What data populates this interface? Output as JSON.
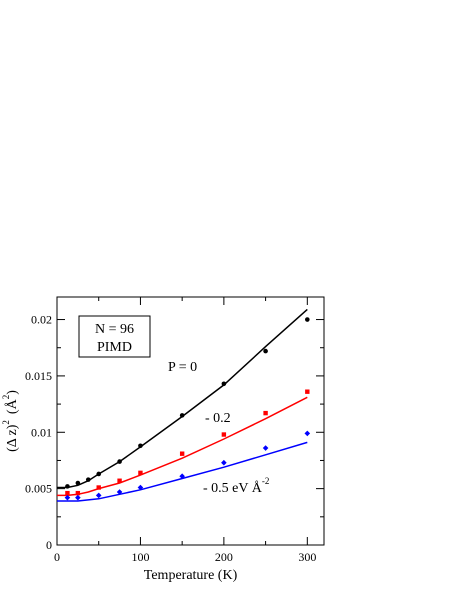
{
  "chart_data": {
    "type": "scatter",
    "xlabel": "Temperature  (K)",
    "ylabel": "(Δ z)",
    "ylabel_sup": "2",
    "ylabel_unit_open": "(",
    "ylabel_unit": "Å",
    "ylabel_unit_sup": "2",
    "ylabel_unit_close": ")",
    "xlim": [
      0,
      320
    ],
    "ylim": [
      0,
      0.022
    ],
    "xticks": [
      0,
      100,
      200,
      300
    ],
    "xtick_labels": [
      "0",
      "100",
      "200",
      "300"
    ],
    "yticks": [
      0,
      0.005,
      0.01,
      0.015,
      0.02
    ],
    "ytick_labels": [
      "0",
      "0.005",
      "0.01",
      "0.015",
      "0.02"
    ],
    "legend_box": {
      "line1": "N  =  96",
      "line2": "PIMD"
    },
    "annotations": {
      "p0": "P  =  0",
      "p1": "- 0.2",
      "p2": "- 0.5  eV Å",
      "p2_sup": "-2"
    },
    "series": [
      {
        "color": "#000000",
        "marker": "circle",
        "points": [
          [
            12.5,
            0.0052
          ],
          [
            25,
            0.0055
          ],
          [
            37.5,
            0.0058
          ],
          [
            50,
            0.0063
          ],
          [
            75,
            0.0074
          ],
          [
            100,
            0.0088
          ],
          [
            150,
            0.0115
          ],
          [
            200,
            0.0143
          ],
          [
            250,
            0.0172
          ],
          [
            300,
            0.02
          ]
        ],
        "fit": [
          [
            0,
            0.0051
          ],
          [
            12.5,
            0.0051
          ],
          [
            25,
            0.0053
          ],
          [
            37.5,
            0.0057
          ],
          [
            50,
            0.0063
          ],
          [
            75,
            0.0074
          ],
          [
            100,
            0.0087
          ],
          [
            150,
            0.0114
          ],
          [
            200,
            0.0142
          ],
          [
            250,
            0.0176
          ],
          [
            300,
            0.0209
          ]
        ]
      },
      {
        "color": "#ff0000",
        "marker": "square",
        "points": [
          [
            12.5,
            0.0046
          ],
          [
            25,
            0.0046
          ],
          [
            50,
            0.0051
          ],
          [
            75,
            0.0057
          ],
          [
            100,
            0.0064
          ],
          [
            150,
            0.0081
          ],
          [
            200,
            0.0098
          ],
          [
            250,
            0.0117
          ],
          [
            300,
            0.0136
          ]
        ],
        "fit": [
          [
            0,
            0.0044
          ],
          [
            12.5,
            0.0044
          ],
          [
            25,
            0.0045
          ],
          [
            37.5,
            0.0047
          ],
          [
            50,
            0.005
          ],
          [
            75,
            0.0055
          ],
          [
            100,
            0.0062
          ],
          [
            150,
            0.0077
          ],
          [
            200,
            0.0094
          ],
          [
            250,
            0.0112
          ],
          [
            300,
            0.0131
          ]
        ]
      },
      {
        "color": "#0000ff",
        "marker": "diamond",
        "points": [
          [
            12.5,
            0.0042
          ],
          [
            25,
            0.0042
          ],
          [
            50,
            0.0044
          ],
          [
            75,
            0.0047
          ],
          [
            100,
            0.0051
          ],
          [
            150,
            0.0061
          ],
          [
            200,
            0.0073
          ],
          [
            250,
            0.0086
          ],
          [
            300,
            0.0099
          ]
        ],
        "fit": [
          [
            0,
            0.0039
          ],
          [
            12.5,
            0.0039
          ],
          [
            25,
            0.0039
          ],
          [
            37.5,
            0.004
          ],
          [
            50,
            0.0041
          ],
          [
            75,
            0.0045
          ],
          [
            100,
            0.0049
          ],
          [
            150,
            0.0059
          ],
          [
            200,
            0.0069
          ],
          [
            250,
            0.008
          ],
          [
            300,
            0.0091
          ]
        ]
      }
    ]
  }
}
